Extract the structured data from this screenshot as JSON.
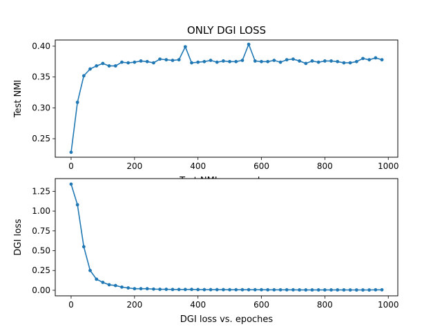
{
  "figure": {
    "title": "ONLY DGI LOSS"
  },
  "chart_data": [
    {
      "type": "line",
      "ylabel": "Test NMI",
      "xlabel": "Test NMI vs. epoches",
      "xlim": [
        -50,
        1030
      ],
      "ylim": [
        0.22,
        0.41
      ],
      "xticks": [
        0,
        200,
        400,
        600,
        800,
        1000
      ],
      "yticks": [
        0.25,
        0.3,
        0.35,
        0.4
      ],
      "ytick_labels": [
        "0.25",
        "0.30",
        "0.35",
        "0.40"
      ],
      "color": "#1f77b4",
      "grid": false,
      "x": [
        0,
        20,
        40,
        60,
        80,
        100,
        120,
        140,
        160,
        180,
        200,
        220,
        240,
        260,
        280,
        300,
        320,
        340,
        360,
        380,
        400,
        420,
        440,
        460,
        480,
        500,
        520,
        540,
        560,
        580,
        600,
        620,
        640,
        660,
        680,
        700,
        720,
        740,
        760,
        780,
        800,
        820,
        840,
        860,
        880,
        900,
        920,
        940,
        960,
        980
      ],
      "y": [
        0.228,
        0.309,
        0.352,
        0.363,
        0.368,
        0.372,
        0.368,
        0.368,
        0.374,
        0.373,
        0.374,
        0.376,
        0.375,
        0.373,
        0.379,
        0.378,
        0.377,
        0.378,
        0.399,
        0.373,
        0.374,
        0.375,
        0.377,
        0.374,
        0.376,
        0.375,
        0.375,
        0.377,
        0.403,
        0.376,
        0.375,
        0.375,
        0.377,
        0.374,
        0.378,
        0.379,
        0.376,
        0.372,
        0.376,
        0.374,
        0.376,
        0.376,
        0.375,
        0.373,
        0.373,
        0.375,
        0.38,
        0.378,
        0.381,
        0.378
      ]
    },
    {
      "type": "line",
      "ylabel": "DGI loss",
      "xlabel": "DGI loss vs. epoches",
      "xlim": [
        -50,
        1030
      ],
      "ylim": [
        -0.07,
        1.41
      ],
      "xticks": [
        0,
        200,
        400,
        600,
        800,
        1000
      ],
      "yticks": [
        0.0,
        0.25,
        0.5,
        0.75,
        1.0,
        1.25
      ],
      "ytick_labels": [
        "0.00",
        "0.25",
        "0.50",
        "0.75",
        "1.00",
        "1.25"
      ],
      "color": "#1f77b4",
      "grid": false,
      "x": [
        0,
        20,
        40,
        60,
        80,
        100,
        120,
        140,
        160,
        180,
        200,
        220,
        240,
        260,
        280,
        300,
        320,
        340,
        360,
        380,
        400,
        420,
        440,
        460,
        480,
        500,
        520,
        540,
        560,
        580,
        600,
        620,
        640,
        660,
        680,
        700,
        720,
        740,
        760,
        780,
        800,
        820,
        840,
        860,
        880,
        900,
        920,
        940,
        960,
        980
      ],
      "y": [
        1.34,
        1.08,
        0.55,
        0.25,
        0.14,
        0.1,
        0.07,
        0.06,
        0.04,
        0.03,
        0.02,
        0.02,
        0.02,
        0.015,
        0.012,
        0.012,
        0.01,
        0.01,
        0.01,
        0.011,
        0.009,
        0.008,
        0.008,
        0.008,
        0.008,
        0.007,
        0.007,
        0.007,
        0.007,
        0.007,
        0.007,
        0.006,
        0.006,
        0.006,
        0.006,
        0.006,
        0.005,
        0.005,
        0.005,
        0.005,
        0.005,
        0.005,
        0.005,
        0.005,
        0.004,
        0.004,
        0.004,
        0.004,
        0.006,
        0.006
      ]
    }
  ]
}
